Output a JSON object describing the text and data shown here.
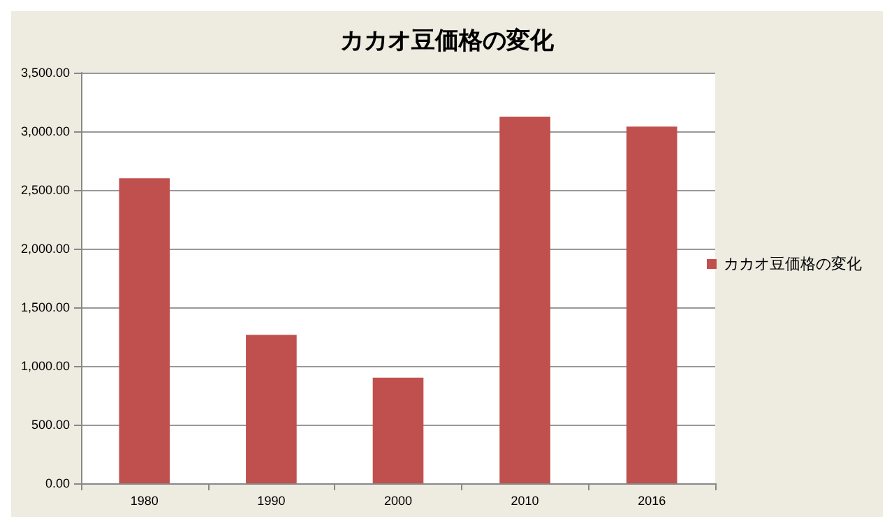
{
  "chart_data": {
    "type": "bar",
    "title": "カカオ豆価格の変化",
    "categories": [
      "1980",
      "1990",
      "2000",
      "2010",
      "2016"
    ],
    "series": [
      {
        "name": "カカオ豆価格の変化",
        "color": "#c0504d",
        "values": [
          2600,
          1265,
          900,
          3125,
          3040
        ]
      }
    ],
    "ylim": [
      0,
      3500
    ],
    "yticks": [
      {
        "value": 0,
        "label": "0.00"
      },
      {
        "value": 500,
        "label": "500.00"
      },
      {
        "value": 1000,
        "label": "1,000.00"
      },
      {
        "value": 1500,
        "label": "1,500.00"
      },
      {
        "value": 2000,
        "label": "2,000.00"
      },
      {
        "value": 2500,
        "label": "2,500.00"
      },
      {
        "value": 3000,
        "label": "3,000.00"
      },
      {
        "value": 3500,
        "label": "3,500.00"
      }
    ],
    "grid": "y",
    "legend": "right"
  }
}
